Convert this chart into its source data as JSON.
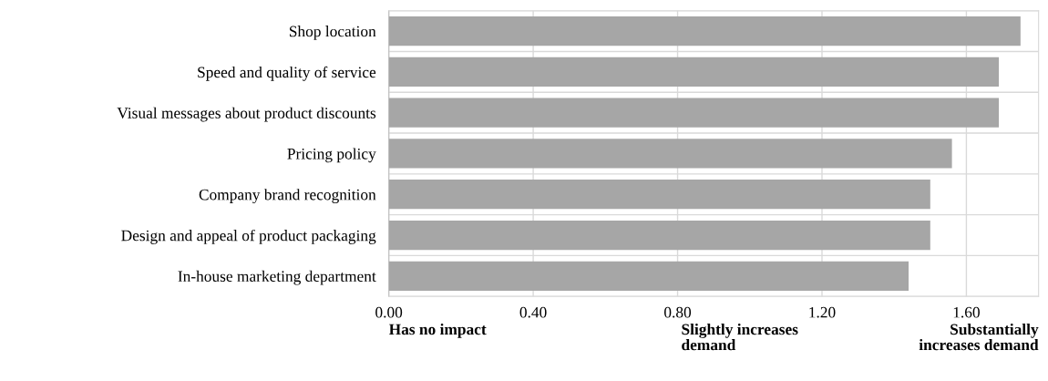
{
  "chart_data": {
    "type": "bar",
    "orientation": "horizontal",
    "categories": [
      "Shop location",
      "Speed and quality of service",
      "Visual messages about product discounts",
      "Pricing policy",
      "Company brand recognition",
      "Design and appeal of product packaging",
      "In-house marketing department"
    ],
    "values": [
      1.75,
      1.69,
      1.69,
      1.56,
      1.5,
      1.5,
      1.44
    ],
    "color": "#a6a6a6",
    "xlim": [
      0,
      1.8
    ],
    "xticks": [
      {
        "value": 0,
        "label": "0.00"
      },
      {
        "value": 0.4,
        "label": "0.40"
      },
      {
        "value": 0.8,
        "label": "0.80"
      },
      {
        "value": 1.2,
        "label": "1.20"
      },
      {
        "value": 1.6,
        "label": "1.60"
      }
    ],
    "grid": true,
    "annotations": [
      "Has no impact",
      "Slightly increases\ndemand",
      "Substantially\nincreases demand"
    ]
  }
}
